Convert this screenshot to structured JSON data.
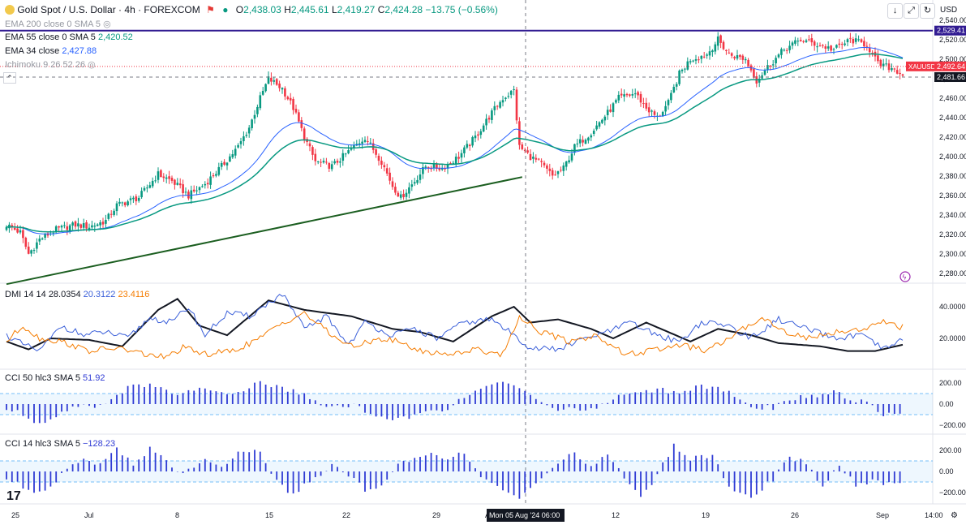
{
  "header": {
    "symbol_title": "Gold Spot / U.S. Dollar · 4h · FOREXCOM",
    "ohlc": {
      "o_label": "O",
      "o": "2,438.03",
      "h_label": "H",
      "h": "2,445.61",
      "l_label": "L",
      "l": "2,419.27",
      "c_label": "C",
      "c": "2,424.28",
      "change": "−13.75 (−0.56%)"
    },
    "currency": "USD"
  },
  "legend": {
    "ema200": "EMA 200 close 0 SMA 5",
    "ema55": "EMA 55 close 0 SMA 5",
    "ema55_value": "2,420.52",
    "ema34": "EMA 34 close",
    "ema34_value": "2,427.88",
    "ichimoku": "Ichimoku 9 26 52 26"
  },
  "price_tags": {
    "resistance": "2,529.41",
    "symbol": "XAUUSD",
    "last": "2,492.64",
    "crosshair": "2,481.66"
  },
  "colors": {
    "up": "#089981",
    "down": "#f23645",
    "ema34": "#2962ff",
    "ema55": "#089981",
    "trend": "#1b5e20",
    "resistance": "#311b92",
    "adx": "#131722",
    "di_plus": "#3a5fd9",
    "di_minus": "#f57c00",
    "cci": "#2f3bd4"
  },
  "chart_data": [
    {
      "type": "candlestick",
      "title": "Gold Spot / U.S. Dollar · 4h · FOREXCOM",
      "y_ticks": [
        2280,
        2300,
        2320,
        2340,
        2360,
        2380,
        2400,
        2420,
        2440,
        2460,
        2480,
        2500,
        2520,
        2540
      ],
      "y_tick_labels": [
        "2,280.00",
        "2,300.00",
        "2,320.00",
        "2,340.00",
        "2,360.00",
        "2,380.00",
        "2,400.00",
        "2,420.00",
        "2,440.00",
        "2,460.00",
        "2,480.00",
        "2,500.00",
        "2,520.00",
        "2,540.00"
      ],
      "x_labels": [
        "25",
        "Jul",
        "8",
        "15",
        "22",
        "29",
        "Aug",
        "12",
        "19",
        "26",
        "Sep",
        "14:00"
      ],
      "crosshair_label": "Mon 05 Aug '24  06:00",
      "close_anchors": [
        [
          0,
          2330
        ],
        [
          5,
          2322
        ],
        [
          8,
          2300
        ],
        [
          12,
          2315
        ],
        [
          18,
          2325
        ],
        [
          25,
          2330
        ],
        [
          30,
          2328
        ],
        [
          36,
          2334
        ],
        [
          40,
          2350
        ],
        [
          48,
          2358
        ],
        [
          55,
          2382
        ],
        [
          60,
          2375
        ],
        [
          66,
          2360
        ],
        [
          72,
          2372
        ],
        [
          78,
          2390
        ],
        [
          84,
          2410
        ],
        [
          88,
          2430
        ],
        [
          92,
          2460
        ],
        [
          95,
          2480
        ],
        [
          100,
          2470
        ],
        [
          104,
          2450
        ],
        [
          108,
          2420
        ],
        [
          112,
          2395
        ],
        [
          118,
          2390
        ],
        [
          124,
          2405
        ],
        [
          130,
          2420
        ],
        [
          136,
          2395
        ],
        [
          140,
          2370
        ],
        [
          143,
          2358
        ],
        [
          148,
          2375
        ],
        [
          152,
          2390
        ],
        [
          158,
          2388
        ],
        [
          164,
          2400
        ],
        [
          170,
          2420
        ],
        [
          176,
          2445
        ],
        [
          180,
          2460
        ],
        [
          184,
          2468
        ],
        [
          186,
          2410
        ],
        [
          190,
          2400
        ],
        [
          194,
          2392
        ],
        [
          198,
          2380
        ],
        [
          202,
          2388
        ],
        [
          206,
          2410
        ],
        [
          212,
          2425
        ],
        [
          218,
          2445
        ],
        [
          222,
          2460
        ],
        [
          228,
          2465
        ],
        [
          232,
          2450
        ],
        [
          236,
          2440
        ],
        [
          240,
          2455
        ],
        [
          244,
          2485
        ],
        [
          248,
          2500
        ],
        [
          254,
          2505
        ],
        [
          258,
          2520
        ],
        [
          262,
          2505
        ],
        [
          268,
          2500
        ],
        [
          272,
          2478
        ],
        [
          276,
          2492
        ],
        [
          282,
          2510
        ],
        [
          288,
          2520
        ],
        [
          294,
          2515
        ],
        [
          300,
          2510
        ],
        [
          306,
          2520
        ],
        [
          312,
          2515
        ],
        [
          316,
          2495
        ],
        [
          322,
          2490
        ],
        [
          325,
          2484
        ]
      ],
      "trendline": {
        "x": [
          0,
          187
        ],
        "y": [
          2284,
          2379
        ]
      },
      "resistance": 2529.41
    },
    {
      "type": "line",
      "title": "DMI 14 14",
      "values": [
        "28.0354",
        "20.3122",
        "23.4116"
      ],
      "y_ticks": [
        20,
        40
      ],
      "y_tick_labels": [
        "20.0000",
        "40.0000"
      ],
      "series": [
        {
          "name": "ADX",
          "anchors": [
            [
              0,
              18
            ],
            [
              8,
              13
            ],
            [
              16,
              20
            ],
            [
              30,
              19
            ],
            [
              42,
              15
            ],
            [
              55,
              38
            ],
            [
              62,
              45
            ],
            [
              70,
              28
            ],
            [
              80,
              22
            ],
            [
              95,
              44
            ],
            [
              108,
              38
            ],
            [
              125,
              34
            ],
            [
              140,
              26
            ],
            [
              150,
              24
            ],
            [
              162,
              18
            ],
            [
              176,
              34
            ],
            [
              184,
              40
            ],
            [
              190,
              30
            ],
            [
              200,
              32
            ],
            [
              212,
              26
            ],
            [
              220,
              20
            ],
            [
              232,
              30
            ],
            [
              240,
              24
            ],
            [
              248,
              18
            ],
            [
              258,
              26
            ],
            [
              270,
              22
            ],
            [
              280,
              17
            ],
            [
              295,
              15
            ],
            [
              305,
              12
            ],
            [
              315,
              12
            ],
            [
              325,
              16
            ]
          ]
        },
        {
          "name": "+DI",
          "anchors": [
            [
              0,
              22
            ],
            [
              6,
              16
            ],
            [
              12,
              12
            ],
            [
              20,
              28
            ],
            [
              28,
              22
            ],
            [
              36,
              24
            ],
            [
              44,
              20
            ],
            [
              52,
              33
            ],
            [
              60,
              30
            ],
            [
              66,
              40
            ],
            [
              72,
              22
            ],
            [
              80,
              36
            ],
            [
              88,
              34
            ],
            [
              100,
              48
            ],
            [
              108,
              26
            ],
            [
              116,
              34
            ],
            [
              124,
              16
            ],
            [
              130,
              30
            ],
            [
              140,
              22
            ],
            [
              148,
              26
            ],
            [
              156,
              20
            ],
            [
              166,
              30
            ],
            [
              176,
              32
            ],
            [
              184,
              22
            ],
            [
              190,
              14
            ],
            [
              200,
              13
            ],
            [
              210,
              20
            ],
            [
              218,
              24
            ],
            [
              226,
              30
            ],
            [
              236,
              22
            ],
            [
              244,
              18
            ],
            [
              252,
              30
            ],
            [
              262,
              28
            ],
            [
              270,
              20
            ],
            [
              280,
              32
            ],
            [
              290,
              26
            ],
            [
              300,
              20
            ],
            [
              310,
              22
            ],
            [
              318,
              13
            ],
            [
              325,
              19
            ]
          ]
        },
        {
          "name": "−DI",
          "anchors": [
            [
              0,
              18
            ],
            [
              6,
              28
            ],
            [
              12,
              20
            ],
            [
              20,
              18
            ],
            [
              30,
              12
            ],
            [
              40,
              14
            ],
            [
              50,
              10
            ],
            [
              58,
              8
            ],
            [
              64,
              14
            ],
            [
              72,
              10
            ],
            [
              82,
              12
            ],
            [
              92,
              20
            ],
            [
              100,
              30
            ],
            [
              108,
              36
            ],
            [
              118,
              22
            ],
            [
              126,
              14
            ],
            [
              134,
              20
            ],
            [
              142,
              18
            ],
            [
              150,
              12
            ],
            [
              160,
              10
            ],
            [
              170,
              13
            ],
            [
              180,
              10
            ],
            [
              186,
              34
            ],
            [
              194,
              24
            ],
            [
              204,
              18
            ],
            [
              214,
              22
            ],
            [
              224,
              10
            ],
            [
              234,
              12
            ],
            [
              244,
              16
            ],
            [
              254,
              12
            ],
            [
              264,
              22
            ],
            [
              274,
              34
            ],
            [
              280,
              26
            ],
            [
              290,
              20
            ],
            [
              300,
              24
            ],
            [
              310,
              26
            ],
            [
              318,
              30
            ],
            [
              325,
              27
            ]
          ]
        }
      ]
    },
    {
      "type": "bar",
      "title": "CCI 50 hlc3 SMA 5",
      "value": "51.92",
      "y_ticks": [
        -200,
        0,
        200
      ],
      "y_tick_labels": [
        "−200.00",
        "0.00",
        "200.00"
      ],
      "band": [
        -100,
        100
      ],
      "anchors": [
        [
          0,
          -40
        ],
        [
          6,
          -90
        ],
        [
          12,
          -190
        ],
        [
          18,
          -100
        ],
        [
          24,
          -30
        ],
        [
          30,
          -20
        ],
        [
          36,
          20
        ],
        [
          40,
          90
        ],
        [
          46,
          200
        ],
        [
          52,
          180
        ],
        [
          58,
          130
        ],
        [
          64,
          80
        ],
        [
          70,
          150
        ],
        [
          78,
          110
        ],
        [
          86,
          120
        ],
        [
          92,
          200
        ],
        [
          98,
          180
        ],
        [
          104,
          130
        ],
        [
          110,
          60
        ],
        [
          118,
          -30
        ],
        [
          126,
          -20
        ],
        [
          132,
          -80
        ],
        [
          140,
          -150
        ],
        [
          146,
          -130
        ],
        [
          152,
          -60
        ],
        [
          160,
          -40
        ],
        [
          166,
          60
        ],
        [
          172,
          140
        ],
        [
          180,
          200
        ],
        [
          186,
          170
        ],
        [
          192,
          20
        ],
        [
          198,
          -30
        ],
        [
          206,
          -60
        ],
        [
          214,
          -20
        ],
        [
          222,
          60
        ],
        [
          232,
          140
        ],
        [
          242,
          120
        ],
        [
          252,
          160
        ],
        [
          262,
          130
        ],
        [
          270,
          -20
        ],
        [
          278,
          -40
        ],
        [
          286,
          60
        ],
        [
          294,
          80
        ],
        [
          302,
          120
        ],
        [
          306,
          10
        ],
        [
          312,
          40
        ],
        [
          316,
          -90
        ],
        [
          320,
          -100
        ],
        [
          325,
          -110
        ]
      ]
    },
    {
      "type": "bar",
      "title": "CCI 14 hlc3 SMA 5",
      "value": "−128.23",
      "y_ticks": [
        -200,
        0,
        200
      ],
      "y_tick_labels": [
        "−200.00",
        "0.00",
        "200.00"
      ],
      "band": [
        -100,
        100
      ],
      "anchors": [
        [
          0,
          -60
        ],
        [
          6,
          -140
        ],
        [
          12,
          -200
        ],
        [
          17,
          -110
        ],
        [
          22,
          40
        ],
        [
          28,
          100
        ],
        [
          34,
          90
        ],
        [
          40,
          230
        ],
        [
          46,
          70
        ],
        [
          52,
          220
        ],
        [
          58,
          100
        ],
        [
          64,
          -40
        ],
        [
          72,
          110
        ],
        [
          78,
          40
        ],
        [
          84,
          190
        ],
        [
          92,
          170
        ],
        [
          98,
          -80
        ],
        [
          104,
          -220
        ],
        [
          110,
          -90
        ],
        [
          118,
          60
        ],
        [
          124,
          -40
        ],
        [
          130,
          -170
        ],
        [
          136,
          -130
        ],
        [
          142,
          60
        ],
        [
          148,
          120
        ],
        [
          154,
          180
        ],
        [
          160,
          130
        ],
        [
          166,
          170
        ],
        [
          172,
          -60
        ],
        [
          180,
          -190
        ],
        [
          186,
          -240
        ],
        [
          192,
          -140
        ],
        [
          200,
          100
        ],
        [
          206,
          160
        ],
        [
          212,
          60
        ],
        [
          218,
          170
        ],
        [
          224,
          -80
        ],
        [
          230,
          -230
        ],
        [
          236,
          -40
        ],
        [
          242,
          260
        ],
        [
          248,
          120
        ],
        [
          256,
          140
        ],
        [
          262,
          -140
        ],
        [
          270,
          -240
        ],
        [
          278,
          -80
        ],
        [
          284,
          140
        ],
        [
          290,
          80
        ],
        [
          296,
          -150
        ],
        [
          302,
          60
        ],
        [
          308,
          -140
        ],
        [
          314,
          -90
        ],
        [
          320,
          -120
        ],
        [
          325,
          -128
        ]
      ]
    }
  ]
}
